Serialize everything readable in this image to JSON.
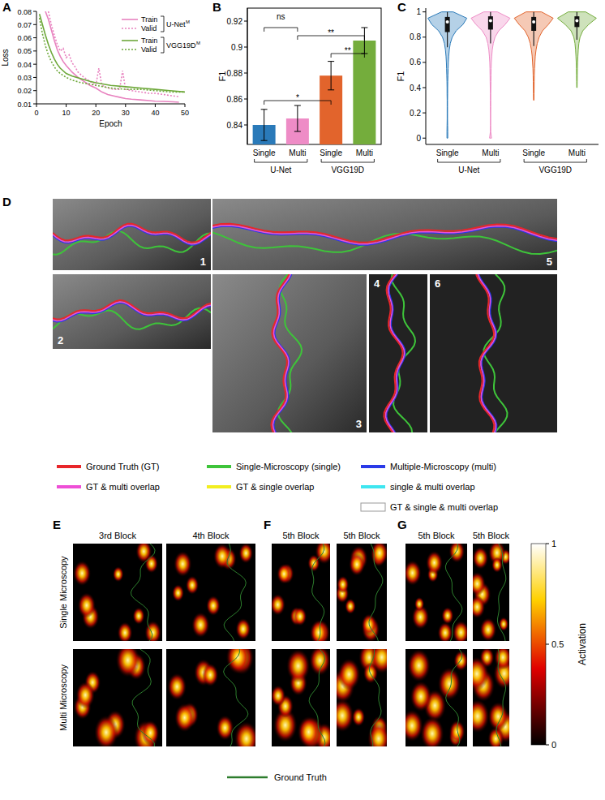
{
  "chart_data": [
    {
      "panel": "A",
      "type": "line",
      "x_label": "Epoch",
      "y_label": "Loss",
      "xlim": [
        0,
        50
      ],
      "xticks": [
        0,
        10,
        20,
        30,
        40,
        50
      ],
      "ylim": [
        0.01,
        0.08
      ],
      "yticks": [
        0.01,
        0.02,
        0.03,
        0.04,
        0.05,
        0.06,
        0.07,
        0.08
      ],
      "legend_groups": [
        {
          "name": "U-Net",
          "superscript": "M",
          "series": [
            0,
            1
          ]
        },
        {
          "name": "VGG19D",
          "superscript": "M",
          "series": [
            2,
            3
          ]
        }
      ],
      "series": [
        {
          "name": "Train",
          "color": "#e882bf",
          "line_style": "solid",
          "x": [
            3,
            4,
            5,
            6,
            7,
            8,
            9,
            10,
            12,
            14,
            16,
            18,
            20,
            22,
            24,
            26,
            28,
            30,
            32,
            35,
            38,
            40,
            43,
            46,
            48
          ],
          "values": [
            0.08,
            0.074,
            0.066,
            0.058,
            0.051,
            0.046,
            0.042,
            0.039,
            0.034,
            0.03,
            0.027,
            0.024,
            0.022,
            0.019,
            0.017,
            0.016,
            0.015,
            0.014,
            0.0135,
            0.013,
            0.0125,
            0.012,
            0.0118,
            0.0115,
            0.0112
          ]
        },
        {
          "name": "Valid",
          "color": "#e882bf",
          "line_style": "dotted",
          "x": [
            4,
            5,
            6,
            7,
            8,
            9,
            10,
            11,
            12,
            13,
            14,
            16,
            18,
            20,
            21,
            22,
            24,
            26,
            28,
            29,
            30,
            32,
            35,
            38,
            40,
            43,
            46,
            48
          ],
          "values": [
            0.08,
            0.07,
            0.062,
            0.055,
            0.05,
            0.052,
            0.045,
            0.047,
            0.041,
            0.038,
            0.034,
            0.03,
            0.027,
            0.024,
            0.037,
            0.024,
            0.022,
            0.021,
            0.021,
            0.035,
            0.021,
            0.02,
            0.019,
            0.018,
            0.018,
            0.017,
            0.016,
            0.0155
          ]
        },
        {
          "name": "Train",
          "color": "#6ea83a",
          "line_style": "solid",
          "x": [
            1,
            2,
            3,
            4,
            5,
            6,
            7,
            8,
            10,
            12,
            15,
            18,
            20,
            25,
            30,
            35,
            40,
            45,
            50
          ],
          "values": [
            0.078,
            0.07,
            0.062,
            0.055,
            0.049,
            0.044,
            0.04,
            0.037,
            0.033,
            0.031,
            0.029,
            0.027,
            0.026,
            0.024,
            0.023,
            0.022,
            0.021,
            0.02,
            0.019
          ]
        },
        {
          "name": "Valid",
          "color": "#6ea83a",
          "line_style": "dotted",
          "x": [
            1,
            2,
            3,
            4,
            5,
            6,
            7,
            8,
            10,
            12,
            15,
            18,
            20,
            25,
            30,
            35,
            40,
            45,
            50
          ],
          "values": [
            0.075,
            0.063,
            0.054,
            0.047,
            0.042,
            0.038,
            0.035,
            0.033,
            0.03,
            0.028,
            0.026,
            0.025,
            0.024,
            0.022,
            0.021,
            0.021,
            0.02,
            0.019,
            0.019
          ]
        }
      ]
    },
    {
      "panel": "B",
      "type": "bar",
      "y_label": "F1",
      "categories": [
        "Single",
        "Multi",
        "Single",
        "Multi"
      ],
      "groups": [
        {
          "name": "U-Net",
          "categories": [
            0,
            1
          ]
        },
        {
          "name": "VGG19D",
          "categories": [
            2,
            3
          ]
        }
      ],
      "values": [
        0.84,
        0.845,
        0.878,
        0.905
      ],
      "errors": [
        0.012,
        0.01,
        0.011,
        0.01
      ],
      "colors": [
        "#2a7ab9",
        "#ee8cc6",
        "#e2642c",
        "#74ad3c"
      ],
      "ylim": [
        0.825,
        0.93
      ],
      "yticks": [
        0.84,
        0.86,
        0.88,
        0.9,
        0.92
      ],
      "significance": [
        {
          "from": 0,
          "to": 1,
          "label": "ns"
        },
        {
          "from": 0,
          "to": 2,
          "label": "*"
        },
        {
          "from": 1,
          "to": 3,
          "label": "**"
        },
        {
          "from": 2,
          "to": 3,
          "label": "**"
        }
      ]
    },
    {
      "panel": "C",
      "type": "violin",
      "y_label": "F1",
      "categories": [
        "Single",
        "Multi",
        "Single",
        "Multi"
      ],
      "groups": [
        {
          "name": "U-Net",
          "categories": [
            0,
            1
          ]
        },
        {
          "name": "VGG19D",
          "categories": [
            2,
            3
          ]
        }
      ],
      "colors": [
        "#2a7ab9",
        "#ee8cc6",
        "#e2642c",
        "#74ad3c"
      ],
      "ylim": [
        -0.05,
        1.03
      ],
      "yticks": [
        0,
        0.2,
        0.4,
        0.6,
        0.8,
        1
      ],
      "density_y": [
        0,
        0.05,
        0.1,
        0.15,
        0.2,
        0.25,
        0.3,
        0.35,
        0.4,
        0.45,
        0.5,
        0.55,
        0.6,
        0.65,
        0.7,
        0.75,
        0.8,
        0.85,
        0.9,
        0.95,
        1
      ],
      "density": [
        [
          0.02,
          0.02,
          0.015,
          0.01,
          0.01,
          0.01,
          0.01,
          0.015,
          0.015,
          0.02,
          0.03,
          0.04,
          0.05,
          0.07,
          0.1,
          0.15,
          0.25,
          0.45,
          0.8,
          1.0,
          0.3
        ],
        [
          0.05,
          0.01,
          0.005,
          0.005,
          0.005,
          0.01,
          0.01,
          0.01,
          0.015,
          0.02,
          0.025,
          0.03,
          0.04,
          0.06,
          0.09,
          0.14,
          0.23,
          0.42,
          0.75,
          1.0,
          0.35
        ],
        [
          0,
          0,
          0,
          0,
          0,
          0,
          0.01,
          0.015,
          0.02,
          0.025,
          0.03,
          0.04,
          0.06,
          0.08,
          0.12,
          0.18,
          0.28,
          0.45,
          0.75,
          1.0,
          0.4
        ],
        [
          0,
          0,
          0,
          0,
          0,
          0,
          0,
          0,
          0.01,
          0.015,
          0.02,
          0.025,
          0.035,
          0.05,
          0.07,
          0.1,
          0.16,
          0.3,
          0.6,
          1.0,
          0.45
        ]
      ],
      "q1": [
        0.84,
        0.86,
        0.85,
        0.88
      ],
      "median": [
        0.92,
        0.93,
        0.92,
        0.93
      ],
      "q3": [
        0.96,
        0.965,
        0.96,
        0.965
      ],
      "whisker_low": [
        0.72,
        0.75,
        0.73,
        0.78
      ],
      "whisker_high": [
        1,
        1,
        1,
        1
      ]
    }
  ],
  "images": {
    "panel": "D",
    "tiles": [
      "1",
      "2",
      "3",
      "4",
      "5",
      "6"
    ],
    "legend": [
      {
        "label": "Ground Truth (GT)",
        "color": "#e8262a"
      },
      {
        "label": "Single-Microscopy (single)",
        "color": "#3ec43a"
      },
      {
        "label": "Multiple-Microscopy (multi)",
        "color": "#2a3ae8"
      },
      {
        "label": "GT & multi overlap",
        "color": "#ee4fd6"
      },
      {
        "label": "GT & single overlap",
        "color": "#f2ee20"
      },
      {
        "label": "single & multi overlap",
        "color": "#3ee6f0"
      },
      {
        "label": "GT & single & multi overlap",
        "color": "#ffffff"
      }
    ]
  },
  "activation_maps": {
    "panels": [
      {
        "label": "E",
        "columns": [
          "3rd Block",
          "4th Block"
        ]
      },
      {
        "label": "F",
        "columns": [
          "5th Block",
          "5th Block"
        ]
      },
      {
        "label": "G",
        "columns": [
          "5th Block",
          "5th Block"
        ]
      }
    ],
    "rows": [
      "Single Microscopy",
      "Multi Microscopy"
    ],
    "colorbar": {
      "range": [
        0,
        1
      ],
      "ticks": [
        0,
        0.5,
        1
      ],
      "label": "Activation"
    },
    "legend": {
      "label": "Ground Truth",
      "color": "#2d7d2d"
    }
  }
}
